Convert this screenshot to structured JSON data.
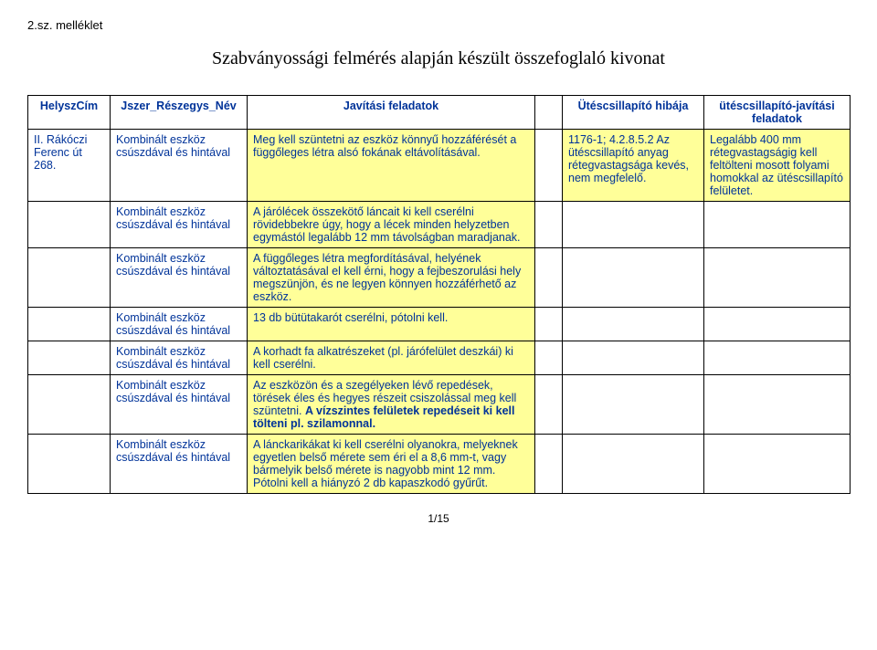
{
  "header_text": "2.sz. melléklet",
  "title": "Szabványossági felmérés alapján készült összefoglaló kivonat",
  "columns": {
    "helysz": "HelyszCím",
    "jszer": "Jszer_Részegys_Név",
    "javitasi": "Javítási feladatok",
    "blank": "",
    "hiba": "Ütéscsillapító hibája",
    "feladatok": "ütéscsillapító-javítási feladatok"
  },
  "rows": [
    {
      "helysz": "II. Rákóczi Ferenc út 268.",
      "jszer": "Kombinált eszköz csúszdával és hintával",
      "javitasi": "Meg kell szüntetni az eszköz könnyű hozzáférését a függőleges létra alsó fokának eltávolításával.",
      "blank": "",
      "hiba": "1176-1; 4.2.8.5.2  Az ütéscsillapító anyag rétegvastagsága kevés, nem megfelelő.",
      "feladatok": "Legalább 400 mm rétegvastagságig kell feltölteni mosott folyami homokkal az ütéscsillapító felületet.",
      "helysz_yellow": false
    },
    {
      "helysz": "",
      "jszer": "Kombinált eszköz csúszdával és hintával",
      "javitasi": "A járólécek összekötő láncait ki kell cserélni rövidebbekre úgy, hogy a lécek minden helyzetben egymástól legalább 12 mm távolságban maradjanak.",
      "blank": "",
      "hiba": "",
      "feladatok": ""
    },
    {
      "helysz": "",
      "jszer": "Kombinált eszköz csúszdával és hintával",
      "javitasi": "A függőleges létra megfordításával, helyének változtatásával el kell érni, hogy a fejbeszorulási hely megszünjön, és ne legyen könnyen hozzáférhető az eszköz.",
      "blank": "",
      "hiba": "",
      "feladatok": ""
    },
    {
      "helysz": "",
      "jszer": "Kombinált eszköz csúszdával és hintával",
      "javitasi": "13 db bütütakarót cserélni, pótolni kell.",
      "blank": "",
      "hiba": "",
      "feladatok": ""
    },
    {
      "helysz": "",
      "jszer": "Kombinált eszköz csúszdával és hintával",
      "javitasi": "A korhadt fa alkatrészeket (pl. járófelület deszkái) ki kell cserélni.",
      "blank": "",
      "hiba": "",
      "feladatok": ""
    },
    {
      "helysz": "",
      "jszer": "Kombinált eszköz csúszdával és hintával",
      "javitasi_html": "Az eszközön és a szegélyeken lévő repedések, törések éles és hegyes részeit csiszolással meg kell szüntetni. <span class='bold'>A vízszintes felületek repedéseit ki kell tölteni pl. szilamonnal.</span>",
      "blank": "",
      "hiba": "",
      "feladatok": ""
    },
    {
      "helysz": "",
      "jszer": "Kombinált eszköz csúszdával és hintával",
      "javitasi_html": "A lánckarikákat ki kell cserélni olyanokra, melyeknek egyetlen belső mérete sem éri el a 8,6 mm-t, vagy bármelyik belső mérete is nagyobb mint 12 mm.<br>Pótolni kell a hiányzó 2 db kapaszkodó gyűrűt.",
      "blank": "",
      "hiba": "",
      "feladatok": ""
    }
  ],
  "page_number": "1/15",
  "style": {
    "yellow": "#ffff99",
    "blue": "#003399",
    "background": "#ffffff"
  }
}
